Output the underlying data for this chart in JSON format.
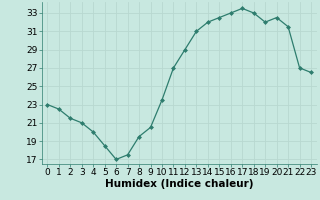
{
  "x": [
    0,
    1,
    2,
    3,
    4,
    5,
    6,
    7,
    8,
    9,
    10,
    11,
    12,
    13,
    14,
    15,
    16,
    17,
    18,
    19,
    20,
    21,
    22,
    23
  ],
  "y": [
    23,
    22.5,
    21.5,
    21,
    20,
    18.5,
    17,
    17.5,
    19.5,
    20.5,
    23.5,
    27,
    29,
    31,
    32,
    32.5,
    33,
    33.5,
    33,
    32,
    32.5,
    31.5,
    27,
    26.5
  ],
  "line_color": "#2e7d6e",
  "marker_color": "#2e7d6e",
  "bg_color": "#c8e8e0",
  "grid_color": "#b8d8d0",
  "xlabel": "Humidex (Indice chaleur)",
  "xlabel_fontsize": 7.5,
  "ylabel_ticks": [
    17,
    19,
    21,
    23,
    25,
    27,
    29,
    31,
    33
  ],
  "xtick_labels": [
    "0",
    "1",
    "2",
    "3",
    "4",
    "5",
    "6",
    "7",
    "8",
    "9",
    "10",
    "11",
    "12",
    "13",
    "14",
    "15",
    "16",
    "17",
    "18",
    "19",
    "20",
    "21",
    "22",
    "23"
  ],
  "ylim": [
    16.5,
    34.2
  ],
  "xlim": [
    -0.5,
    23.5
  ],
  "tick_fontsize": 6.5
}
